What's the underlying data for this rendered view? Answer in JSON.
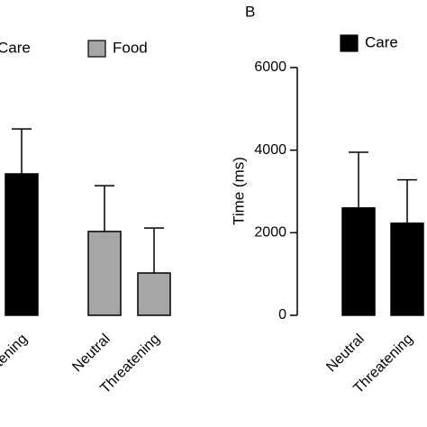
{
  "chart_data": [
    {
      "type": "bar",
      "ylim": [
        0,
        6000
      ],
      "series": [
        {
          "name": "Care",
          "color": "#000000",
          "categories": [
            "Threatening"
          ],
          "values": [
            3425
          ],
          "errors": [
            1090
          ]
        },
        {
          "name": "Food",
          "color": "#a6a6a6",
          "categories": [
            "Neutral",
            "Threatening"
          ],
          "values": [
            2030,
            1025
          ],
          "errors": [
            1110,
            1090
          ]
        }
      ]
    },
    {
      "type": "bar",
      "title": "B",
      "y_label": "Time (ms)",
      "ylim": [
        0,
        6000
      ],
      "yticks": [
        0,
        2000,
        4000,
        6000
      ],
      "series": [
        {
          "name": "Care",
          "color": "#000000",
          "categories": [
            "Neutral",
            "Threatening"
          ],
          "values": [
            2600,
            2230
          ],
          "errors": [
            1350,
            1050
          ]
        }
      ]
    }
  ]
}
